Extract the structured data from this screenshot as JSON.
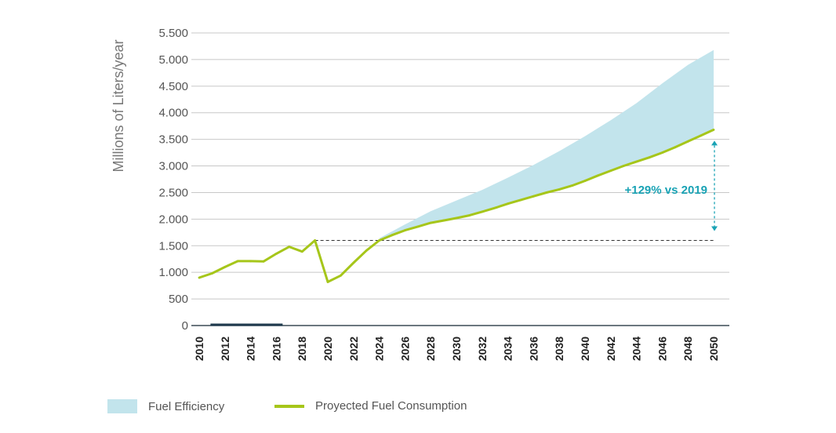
{
  "chart_data": {
    "type": "area",
    "ylabel": "Millions of Liters/year",
    "ylim": [
      0,
      5500
    ],
    "yticks": [
      0,
      500,
      1000,
      1500,
      2000,
      2500,
      3000,
      3500,
      4000,
      4500,
      5000,
      5500
    ],
    "ytick_labels": [
      "0",
      "500",
      "1.000",
      "1.500",
      "2.000",
      "2.500",
      "3.000",
      "3.500",
      "4.000",
      "4.500",
      "5.000",
      "5.500"
    ],
    "xlim": [
      2010,
      2050
    ],
    "xticks": [
      2010,
      2012,
      2014,
      2016,
      2018,
      2020,
      2022,
      2024,
      2026,
      2028,
      2030,
      2032,
      2034,
      2036,
      2038,
      2040,
      2042,
      2044,
      2046,
      2048,
      2050
    ],
    "series": [
      {
        "name": "Proyected Fuel Consumption",
        "type": "line",
        "color": "#a6c61a",
        "x": [
          2010,
          2011,
          2012,
          2013,
          2014,
          2015,
          2016,
          2017,
          2018,
          2019,
          2020,
          2021,
          2022,
          2023,
          2024,
          2025,
          2026,
          2027,
          2028,
          2029,
          2030,
          2031,
          2032,
          2033,
          2034,
          2035,
          2036,
          2037,
          2038,
          2039,
          2040,
          2041,
          2042,
          2043,
          2044,
          2045,
          2046,
          2047,
          2048,
          2049,
          2050
        ],
        "y": [
          900,
          980,
          1100,
          1210,
          1210,
          1205,
          1350,
          1480,
          1390,
          1600,
          820,
          940,
          1180,
          1410,
          1600,
          1700,
          1790,
          1860,
          1930,
          1975,
          2020,
          2070,
          2140,
          2210,
          2290,
          2360,
          2430,
          2500,
          2560,
          2630,
          2720,
          2820,
          2910,
          3000,
          3080,
          3160,
          3250,
          3350,
          3460,
          3570,
          3680
        ]
      },
      {
        "name": "Fuel Efficiency",
        "type": "area-band",
        "color": "#c2e4ec",
        "x": [
          2024,
          2026,
          2028,
          2030,
          2032,
          2034,
          2036,
          2038,
          2040,
          2042,
          2044,
          2046,
          2048,
          2050
        ],
        "lower": [
          1600,
          1790,
          1930,
          2020,
          2140,
          2290,
          2430,
          2560,
          2720,
          2910,
          3080,
          3250,
          3460,
          3680
        ],
        "upper": [
          1640,
          1900,
          2150,
          2350,
          2550,
          2780,
          3020,
          3280,
          3560,
          3860,
          4180,
          4550,
          4900,
          5180
        ]
      }
    ],
    "baseline": {
      "value": 1600,
      "from": 2019,
      "to": 2050,
      "style": "dashed",
      "color": "#333333"
    },
    "baseline_bar": {
      "from": 2011,
      "to": 2016,
      "color": "#1f3a4d"
    },
    "annotation": {
      "text": "+129% vs 2019",
      "color": "#1aa3b5",
      "x": 2050,
      "from": 1600,
      "to": 3680
    },
    "grid": true,
    "legend_position": "bottom-left"
  },
  "legend": {
    "items": [
      {
        "label": "Fuel Efficiency",
        "color": "#c2e4ec",
        "kind": "area"
      },
      {
        "label": "Proyected Fuel Consumption",
        "color": "#a6c61a",
        "kind": "line"
      }
    ]
  }
}
